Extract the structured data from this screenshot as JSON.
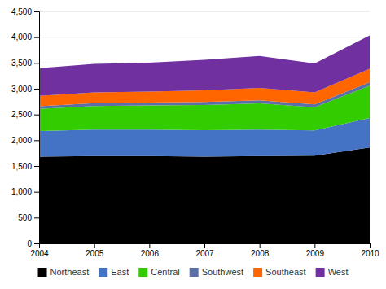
{
  "chart_data": {
    "type": "area",
    "stacked": true,
    "grid": true,
    "legend": "bottom",
    "x": [
      2004,
      2005,
      2006,
      2007,
      2008,
      2009,
      2010
    ],
    "xlim": [
      2004,
      2010
    ],
    "xticks": [
      2004,
      2005,
      2006,
      2007,
      2008,
      2009,
      2010
    ],
    "ylim": [
      0,
      4500
    ],
    "yticks": [
      0,
      500,
      {
        "value": 1000,
        "label": "1,000"
      },
      {
        "value": 1500,
        "label": "1,500"
      },
      {
        "value": 2000,
        "label": "2,000"
      },
      {
        "value": 2500,
        "label": "2,500"
      },
      {
        "value": 3000,
        "label": "3,000"
      },
      {
        "value": 3500,
        "label": "3,500"
      },
      {
        "value": 4000,
        "label": "4,000"
      },
      {
        "value": 4500,
        "label": "4,500"
      }
    ],
    "series": [
      {
        "name": "Northeast",
        "color": "#000000",
        "values": [
          1680,
          1695,
          1695,
          1680,
          1695,
          1700,
          1860
        ]
      },
      {
        "name": "East",
        "color": "#4472C4",
        "values": [
          500,
          510,
          510,
          515,
          510,
          490,
          570
        ]
      },
      {
        "name": "Central",
        "color": "#33CC00",
        "values": [
          430,
          460,
          470,
          490,
          510,
          450,
          630
        ]
      },
      {
        "name": "Southwest",
        "color": "#5B6FA6",
        "values": [
          50,
          55,
          55,
          60,
          60,
          55,
          65
        ]
      },
      {
        "name": "Southeast",
        "color": "#FF6600",
        "values": [
          200,
          210,
          215,
          225,
          240,
          235,
          260
        ]
      },
      {
        "name": "West",
        "color": "#7030A0",
        "values": [
          540,
          550,
          560,
          590,
          620,
          560,
          650
        ]
      }
    ]
  }
}
